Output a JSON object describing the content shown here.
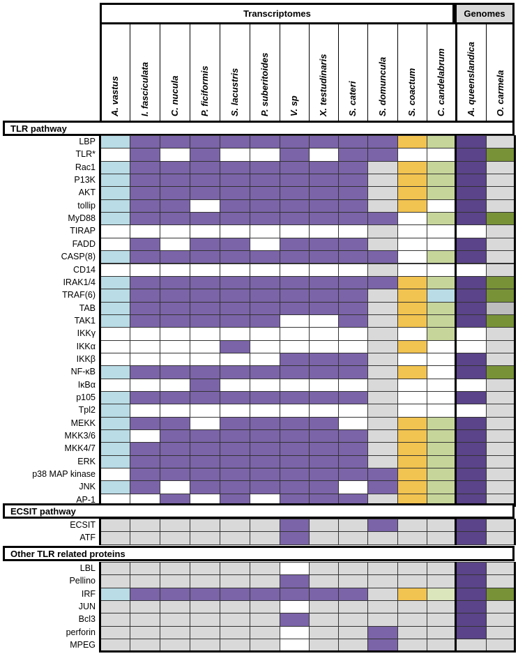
{
  "headers": {
    "transcriptomes": "Transcriptomes",
    "genomes": "Genomes"
  },
  "species": [
    "A. vastus",
    "I. fasciculata",
    "C. nucula",
    "P. ficiformis",
    "S. lacustris",
    "P. suberitoides",
    "V. sp",
    "X. testudinaris",
    "S. cateri",
    "S. domuncula",
    "S. coactum",
    "C. candelabrum",
    "A. queenslandica",
    "O. carmela"
  ],
  "colors": {
    "L": "#b9dce6",
    "P": "#7b64a8",
    "W": "#ffffff",
    "G": "#d9d9d9",
    "Y": "#f1c350",
    "N": "#c6d59a",
    "D": "#5b4489",
    "O": "#789238",
    "B": "#b9dce6",
    "M": "#bdbdbd",
    "Q": "#dbe6bd"
  },
  "sections": [
    {
      "title": "TLR pathway",
      "rows": [
        {
          "label": "LBP",
          "cells": "LPPPPPPPPPYNDG"
        },
        {
          "label": "TLR*",
          "cells": "WPWPWWPWPPWWDO"
        },
        {
          "label": "Rac1",
          "cells": "LPPPPPPPPGYNDG"
        },
        {
          "label": "P13K",
          "cells": "LPPPPPPPPGYNDG"
        },
        {
          "label": "AKT",
          "cells": "LPPPPPPPPGYNDG"
        },
        {
          "label": "tollip",
          "cells": "LPPWPPPPPGYWDG"
        },
        {
          "label": "MyD88",
          "cells": "LPPPPPPPPPWNDO"
        },
        {
          "label": "TIRAP",
          "cells": "WWWWWWWWWGWWWG"
        },
        {
          "label": "FADD",
          "cells": "WPWPPWPPPGWWDG"
        },
        {
          "label": "CASP(8)",
          "cells": "LPPPPPPPPPWNDG"
        },
        {
          "label": "CD14",
          "cells": "WWWWWWWWWGWWWG"
        },
        {
          "label": "IRAK1/4",
          "cells": "LPPPPPPPPPYNDO"
        },
        {
          "label": "TRAF(6)",
          "cells": "LPPPPPPPPGYBDO"
        },
        {
          "label": "TAB",
          "cells": "LPPPPPPPPGYNDM"
        },
        {
          "label": "TAK1",
          "cells": "LPPPPPWWPGYNDO"
        },
        {
          "label": "IKKγ",
          "cells": "WWWWWWWWWGWNWG"
        },
        {
          "label": "IKKα",
          "cells": "WWWWPWWWWGYWWG"
        },
        {
          "label": "IKKβ",
          "cells": "WWWWWWPPPGWWDG"
        },
        {
          "label": "NF-κB",
          "cells": "LPPPPPPPPGYWDO"
        },
        {
          "label": "IκBα",
          "cells": "WWWPWWWWWGWWWG"
        },
        {
          "label": "p105",
          "cells": "LPPPPPPPPGWWDG"
        },
        {
          "label": "Tpl2",
          "cells": "LWWWWWWWWGWWWG"
        },
        {
          "label": "MEKK",
          "cells": "LPPWPPPPWGYNDG"
        },
        {
          "label": "MKK3/6",
          "cells": "LWPPPPPPPGYNDG"
        },
        {
          "label": "MKK4/7",
          "cells": "LPPPPPPPPGYNDG"
        },
        {
          "label": "ERK",
          "cells": "LPPPPPPPPGYNDG"
        },
        {
          "label": "p38 MAP kinase",
          "cells": "WPPPPPPPPPYNDG"
        },
        {
          "label": "JNK",
          "cells": "LPWPPPPPWPYNDG"
        },
        {
          "label": "AP-1",
          "cells": "WWPWPWPPPGYNDG"
        }
      ]
    },
    {
      "title": "ECSIT pathway",
      "rows": [
        {
          "label": "ECSIT",
          "cells": "GGGGGGPGGPGGDG"
        },
        {
          "label": "ATF",
          "cells": "GGGGGGPGGGGGDG"
        }
      ]
    },
    {
      "title": "Other TLR related proteins",
      "rows": [
        {
          "label": "LBL",
          "cells": "GGGGGGWGGGGGDG"
        },
        {
          "label": "Pellino",
          "cells": "GGGGGGPGGGGGDG"
        },
        {
          "label": "IRF",
          "cells": "LPPPPPPPPGYQDO"
        },
        {
          "label": "JUN",
          "cells": "GGGGGGWGGGGGDG"
        },
        {
          "label": "Bcl3",
          "cells": "GGGGGGPGGGGGDG"
        },
        {
          "label": "perforin",
          "cells": "GGGGGGWGGPGGDG"
        },
        {
          "label": "MPEG",
          "cells": "GGGGGGWGGPGGGG"
        }
      ]
    }
  ]
}
